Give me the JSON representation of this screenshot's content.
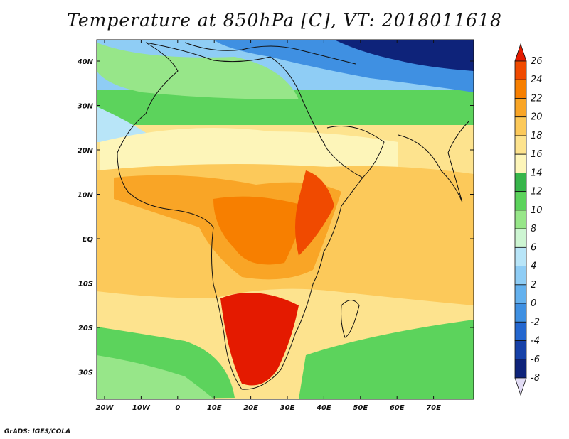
{
  "title": "Temperature at 850hPa [C], VT: 2018011618",
  "credit": "GrADS: IGES/COLA",
  "map": {
    "lat_ticks": [
      "40N",
      "30N",
      "20N",
      "10N",
      "EQ",
      "10S",
      "20S",
      "30S"
    ],
    "lon_ticks": [
      "20W",
      "10W",
      "0",
      "10E",
      "20E",
      "30E",
      "40E",
      "50E",
      "60E",
      "70E"
    ]
  },
  "colorbar": {
    "labels": [
      "26",
      "24",
      "22",
      "20",
      "18",
      "16",
      "14",
      "12",
      "10",
      "8",
      "6",
      "4",
      "2",
      "0",
      "-2",
      "-4",
      "-6",
      "-8"
    ],
    "colors": [
      "#e41a00",
      "#f04a00",
      "#f77f00",
      "#f9a526",
      "#fcc95a",
      "#fde38e",
      "#fdf5b9",
      "#37b54a",
      "#5cd35c",
      "#97e689",
      "#cdf5d2",
      "#b8e5f8",
      "#8fcdf5",
      "#64b1ee",
      "#3f90e2",
      "#2467cf",
      "#1641a8",
      "#0e237a",
      "#e2dcf5"
    ]
  }
}
